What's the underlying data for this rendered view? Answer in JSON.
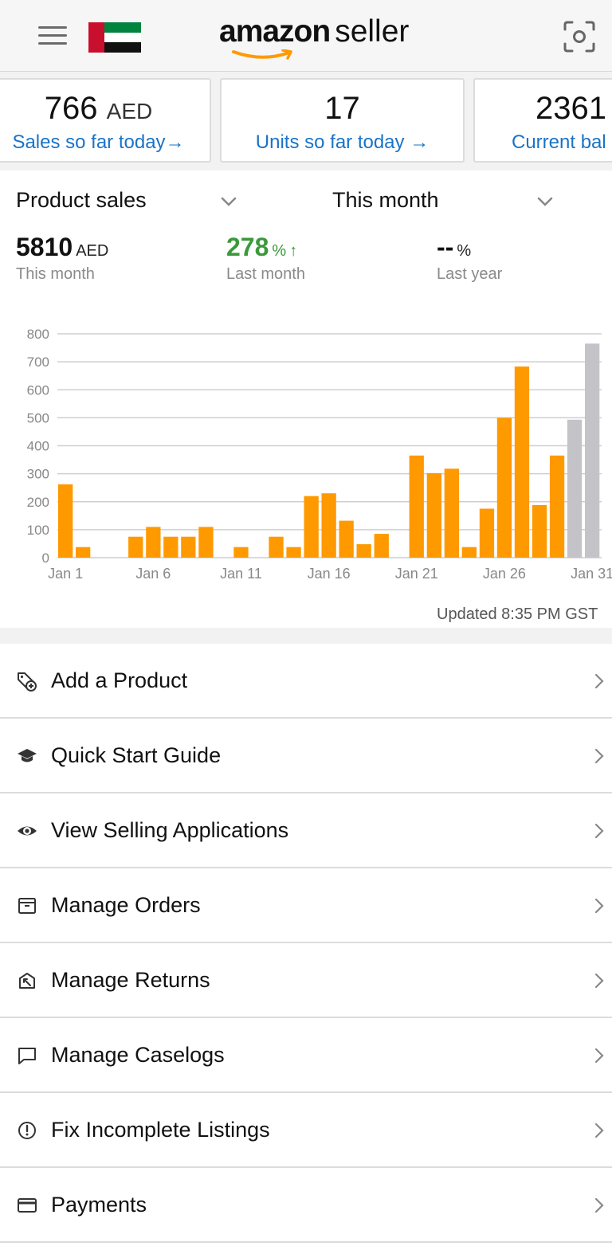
{
  "header": {
    "brand": "amazon",
    "product": "seller",
    "menu_icon": "hamburger-menu-icon",
    "flag_icon": "uae-flag-icon",
    "scan_icon": "camera-scan-icon"
  },
  "cards": [
    {
      "value": "766",
      "unit": "AED",
      "label": "Sales so far today",
      "arrow": "→"
    },
    {
      "value": "17",
      "unit": "",
      "label": "Units so far today",
      "arrow": "→"
    },
    {
      "value": "2361",
      "unit": "",
      "label": "Current bal",
      "arrow": ""
    }
  ],
  "sales": {
    "metric_select": "Product sales",
    "period_select": "This month",
    "stats": [
      {
        "value": "5810",
        "unit": "AED",
        "label": "This month"
      },
      {
        "value": "278",
        "unit": "%",
        "arrow": "↑",
        "label": "Last month"
      },
      {
        "value": "--",
        "unit": "%",
        "label": "Last year"
      }
    ],
    "updated": "Updated 8:35 PM GST"
  },
  "chart_data": {
    "type": "bar",
    "categories": [
      "Jan 1",
      "Jan 2",
      "Jan 3",
      "Jan 4",
      "Jan 5",
      "Jan 6",
      "Jan 7",
      "Jan 8",
      "Jan 9",
      "Jan 10",
      "Jan 11",
      "Jan 12",
      "Jan 13",
      "Jan 14",
      "Jan 15",
      "Jan 16",
      "Jan 17",
      "Jan 18",
      "Jan 19",
      "Jan 20",
      "Jan 21",
      "Jan 22",
      "Jan 23",
      "Jan 24",
      "Jan 25",
      "Jan 26",
      "Jan 27",
      "Jan 28",
      "Jan 29",
      "Jan 30",
      "Jan 31"
    ],
    "values": [
      262,
      38,
      0,
      0,
      75,
      110,
      75,
      75,
      110,
      0,
      38,
      0,
      75,
      38,
      220,
      230,
      132,
      48,
      85,
      0,
      365,
      302,
      318,
      38,
      175,
      500,
      683,
      188,
      365,
      493,
      765
    ],
    "projected_from_index": 29,
    "xtick_labels": [
      "Jan 1",
      "Jan 6",
      "Jan 11",
      "Jan 16",
      "Jan 21",
      "Jan 26",
      "Jan 31"
    ],
    "ytick_labels": [
      "0",
      "100",
      "200",
      "300",
      "400",
      "500",
      "600",
      "700",
      "800"
    ],
    "ylim": [
      0,
      800
    ],
    "grid": true,
    "colors": {
      "actual": "#ff9900",
      "projected": "#c4c4c8"
    }
  },
  "menu": [
    {
      "label": "Add a Product",
      "icon": "tag-add-icon"
    },
    {
      "label": "Quick Start Guide",
      "icon": "graduation-cap-icon"
    },
    {
      "label": "View Selling Applications",
      "icon": "eye-icon"
    },
    {
      "label": "Manage Orders",
      "icon": "order-box-icon"
    },
    {
      "label": "Manage Returns",
      "icon": "return-box-icon"
    },
    {
      "label": "Manage Caselogs",
      "icon": "speech-bubble-icon"
    },
    {
      "label": "Fix Incomplete Listings",
      "icon": "alert-circle-icon"
    },
    {
      "label": "Payments",
      "icon": "credit-card-icon"
    }
  ]
}
